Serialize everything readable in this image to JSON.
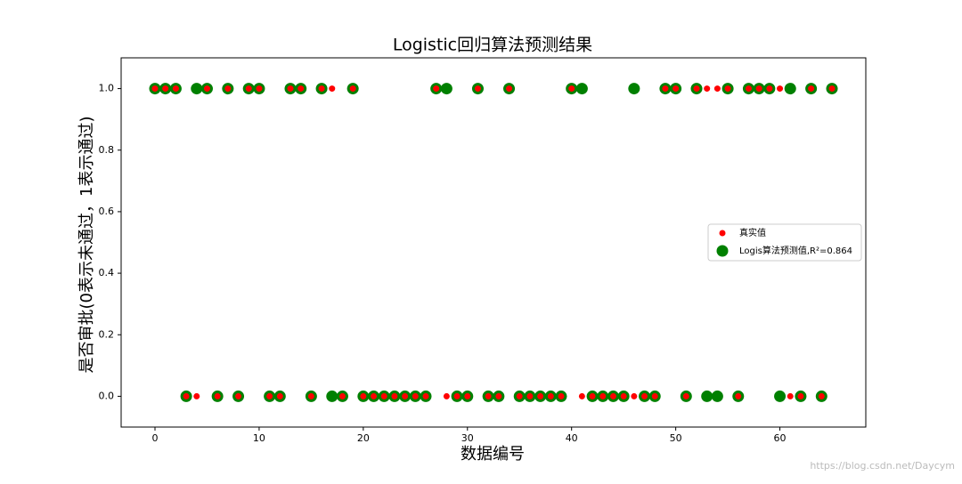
{
  "chart_data": {
    "type": "scatter",
    "title": "Logistic回归算法预测结果",
    "xlabel": "数据编号",
    "ylabel": "是否审批(0表示未通过，1表示通过)",
    "watermark": "https://blog.csdn.net/Daycym",
    "x": [
      0,
      1,
      2,
      3,
      4,
      5,
      6,
      7,
      8,
      9,
      10,
      11,
      12,
      13,
      14,
      15,
      16,
      17,
      18,
      19,
      20,
      21,
      22,
      23,
      24,
      25,
      26,
      27,
      28,
      29,
      30,
      31,
      32,
      33,
      34,
      35,
      36,
      37,
      38,
      39,
      40,
      41,
      42,
      43,
      44,
      45,
      46,
      47,
      48,
      49,
      50,
      51,
      52,
      53,
      54,
      55,
      56,
      57,
      58,
      59,
      60,
      61,
      62,
      63,
      64,
      65
    ],
    "series": [
      {
        "name": "Logis算法预测值,R²=0.864",
        "color": "#008000",
        "size": 6.5,
        "values": [
          1,
          1,
          1,
          0,
          1,
          1,
          0,
          1,
          0,
          1,
          1,
          0,
          0,
          1,
          1,
          0,
          1,
          0,
          0,
          1,
          0,
          0,
          0,
          0,
          0,
          0,
          0,
          1,
          1,
          0,
          0,
          1,
          0,
          0,
          1,
          0,
          0,
          0,
          0,
          0,
          1,
          1,
          0,
          0,
          0,
          0,
          1,
          0,
          0,
          1,
          1,
          0,
          1,
          0,
          0,
          1,
          0,
          1,
          1,
          1,
          0,
          1,
          0,
          1,
          0,
          1
        ]
      },
      {
        "name": "真实值",
        "color": "#ff0000",
        "size": 3.5,
        "values": [
          1,
          1,
          1,
          0,
          0,
          1,
          0,
          1,
          0,
          1,
          1,
          0,
          0,
          1,
          1,
          0,
          1,
          1,
          0,
          1,
          0,
          0,
          0,
          0,
          0,
          0,
          0,
          1,
          0,
          0,
          0,
          1,
          0,
          0,
          1,
          0,
          0,
          0,
          0,
          0,
          1,
          0,
          0,
          0,
          0,
          0,
          0,
          0,
          0,
          1,
          1,
          0,
          1,
          1,
          1,
          1,
          0,
          1,
          1,
          1,
          1,
          0,
          0,
          1,
          0,
          1
        ]
      }
    ],
    "legend_order": [
      1,
      0
    ],
    "legend_position": "right",
    "xlim": [
      -3.25,
      68.25
    ],
    "xticks": [
      0,
      10,
      20,
      30,
      40,
      50,
      60
    ],
    "ylim": [
      -0.1,
      1.1
    ],
    "yticks": [
      {
        "value": 0,
        "label": "0.0"
      },
      {
        "value": 0.2,
        "label": "0.2"
      },
      {
        "value": 0.4,
        "label": "0.4"
      },
      {
        "value": 0.6,
        "label": "0.6"
      },
      {
        "value": 0.8,
        "label": "0.8"
      },
      {
        "value": 1,
        "label": "1.0"
      }
    ],
    "grid": false
  }
}
